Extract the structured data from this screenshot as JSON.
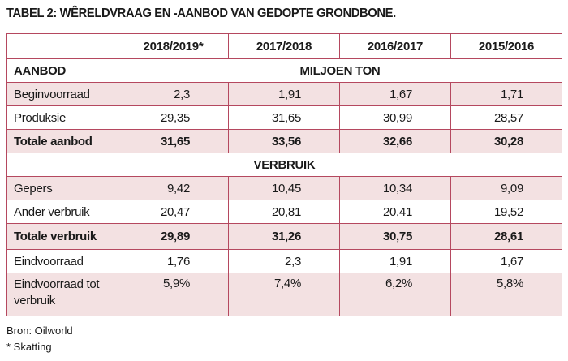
{
  "title": "TABEL 2: WÊRELDVRAAG EN -AANBOD VAN GEDOPTE GRONDBONE.",
  "columns": [
    "2018/2019*",
    "2017/2018",
    "2016/2017",
    "2015/2016"
  ],
  "aanbod_label": "AANBOD",
  "unit_label": "MILJOEN TON",
  "verbruik_label": "VERBRUIK",
  "rows": [
    {
      "label": "Beginvoorraad",
      "values": [
        "2,3",
        "1,91",
        "1,67",
        "1,71"
      ]
    },
    {
      "label": "Produksie",
      "values": [
        "29,35",
        "31,65",
        "30,99",
        "28,57"
      ]
    },
    {
      "label": "Totale aanbod",
      "values": [
        "31,65",
        "33,56",
        "32,66",
        "30,28"
      ]
    },
    {
      "label": "Gepers",
      "values": [
        "9,42",
        "10,45",
        "10,34",
        "9,09"
      ]
    },
    {
      "label": "Ander verbruik",
      "values": [
        "20,47",
        "20,81",
        "20,41",
        "19,52"
      ]
    },
    {
      "label": "Totale verbruik",
      "values": [
        "29,89",
        "31,26",
        "30,75",
        "28,61"
      ]
    },
    {
      "label": "Eindvoorraad",
      "values": [
        "1,76",
        "2,3",
        "1,91",
        "1,67"
      ]
    },
    {
      "label": "Eindvoorraad tot verbruik",
      "values": [
        "5,9%",
        "7,4%",
        "6,2%",
        "5,8%"
      ]
    }
  ],
  "source": "Bron: Oilworld",
  "note": "* Skatting",
  "colors": {
    "border": "#b5485f",
    "shade": "#f3e1e2"
  }
}
